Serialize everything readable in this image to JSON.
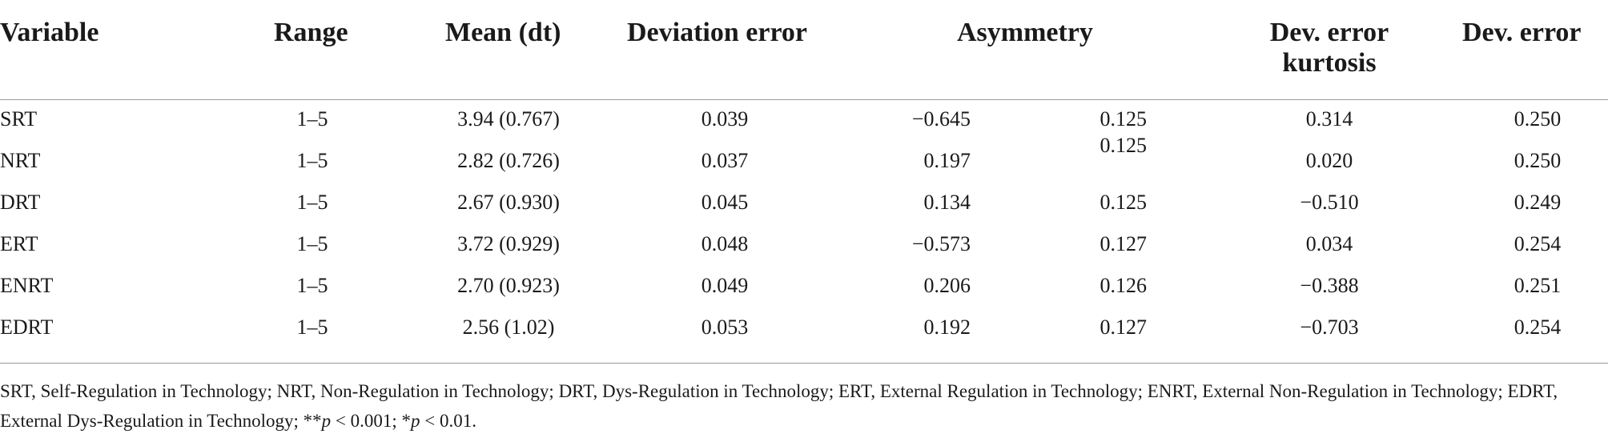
{
  "headers": {
    "variable": "Variable",
    "range": "Range",
    "mean": "Mean (dt)",
    "deviation_error": "Deviation error",
    "asymmetry": "Asymmetry",
    "dev_error_kurtosis_line1": "Dev. error",
    "dev_error_kurtosis_line2": "kurtosis",
    "dev_error": "Dev. error"
  },
  "rows": [
    {
      "variable": "SRT",
      "range": "1–5",
      "mean": "3.94 (0.767)",
      "deviation_error": "0.039",
      "asymmetry": "−0.645",
      "asym_se": "0.125",
      "kurtosis": "0.314",
      "dev_error": "0.250"
    },
    {
      "variable": "NRT",
      "range": "1–5",
      "mean": "2.82 (0.726)",
      "deviation_error": "0.037",
      "asymmetry": "0.197",
      "asym_se": "0.125",
      "kurtosis": "0.020",
      "dev_error": "0.250"
    },
    {
      "variable": "DRT",
      "range": "1–5",
      "mean": "2.67 (0.930)",
      "deviation_error": "0.045",
      "asymmetry": "0.134",
      "asym_se": "0.125",
      "kurtosis": "−0.510",
      "dev_error": "0.249"
    },
    {
      "variable": "ERT",
      "range": "1–5",
      "mean": "3.72 (0.929)",
      "deviation_error": "0.048",
      "asymmetry": "−0.573",
      "asym_se": "0.127",
      "kurtosis": "0.034",
      "dev_error": "0.254"
    },
    {
      "variable": "ENRT",
      "range": "1–5",
      "mean": "2.70 (0.923)",
      "deviation_error": "0.049",
      "asymmetry": "0.206",
      "asym_se": "0.126",
      "kurtosis": "−0.388",
      "dev_error": "0.251"
    },
    {
      "variable": "EDRT",
      "range": "1–5",
      "mean": "2.56 (1.02)",
      "deviation_error": "0.053",
      "asymmetry": "0.192",
      "asym_se": "0.127",
      "kurtosis": "−0.703",
      "dev_error": "0.254"
    }
  ],
  "footnote": {
    "text": "SRT, Self-Regulation in Technology; NRT, Non-Regulation in Technology; DRT, Dys-Regulation in Technology; ERT, External Regulation in Technology; ENRT, External Non-Regulation in Technology; EDRT, External Dys-Regulation in Technology; ",
    "sig1_stars": "**",
    "sig1_p": "p",
    "sig1_rest": " < 0.001; ",
    "sig2_stars": "*",
    "sig2_p": "p",
    "sig2_rest": " < 0.01."
  }
}
